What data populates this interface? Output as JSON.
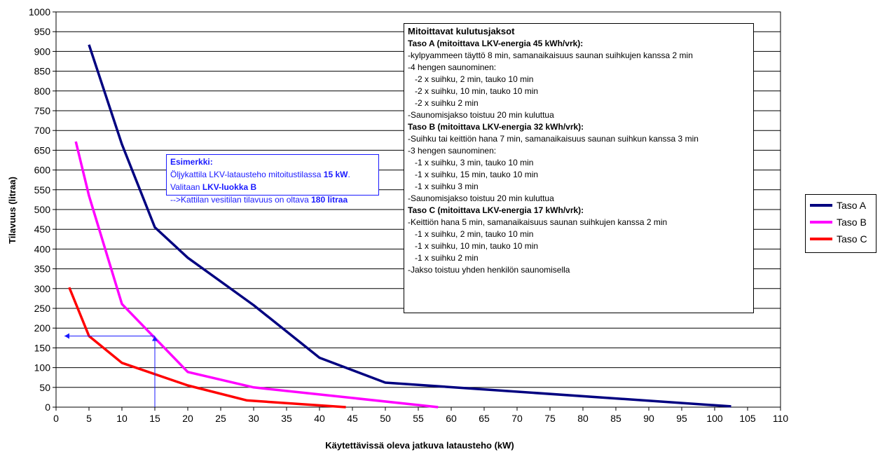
{
  "chart_data": {
    "type": "line",
    "xlabel": "Käytettävissä oleva jatkuva latausteho (kW)",
    "ylabel": "Tilavuus (litraa)",
    "xlim": [
      0,
      110
    ],
    "ylim": [
      0,
      1000
    ],
    "xticks": [
      "0",
      "5",
      "10",
      "15",
      "20",
      "25",
      "30",
      "35",
      "40",
      "45",
      "50",
      "55",
      "60",
      "65",
      "70",
      "75",
      "80",
      "85",
      "90",
      "95",
      "100",
      "105",
      "110"
    ],
    "yticks": [
      "0",
      "50",
      "100",
      "150",
      "200",
      "250",
      "300",
      "350",
      "400",
      "450",
      "500",
      "550",
      "600",
      "650",
      "700",
      "750",
      "800",
      "850",
      "900",
      "950",
      "1000"
    ],
    "grid": "horizontal",
    "legend_position": "right",
    "series": [
      {
        "name": "Taso A",
        "color": "#000080",
        "points": [
          [
            5,
            917
          ],
          [
            10,
            665
          ],
          [
            15,
            455
          ],
          [
            20,
            378
          ],
          [
            30,
            258
          ],
          [
            40,
            125
          ],
          [
            50,
            62
          ],
          [
            102.5,
            2
          ]
        ]
      },
      {
        "name": "Taso B",
        "color": "#ff00ff",
        "points": [
          [
            3,
            672
          ],
          [
            5,
            535
          ],
          [
            10,
            261
          ],
          [
            20,
            89
          ],
          [
            30,
            50
          ],
          [
            58,
            0
          ]
        ]
      },
      {
        "name": "Taso C",
        "color": "#ff0000",
        "points": [
          [
            2,
            303
          ],
          [
            5,
            180
          ],
          [
            10,
            112
          ],
          [
            20,
            55
          ],
          [
            29,
            17
          ],
          [
            44,
            0
          ]
        ]
      }
    ],
    "example_marker": {
      "x": 15,
      "y": 180,
      "color": "#1a1aff"
    }
  },
  "legend": {
    "items": [
      "Taso A",
      "Taso B",
      "Taso C"
    ]
  },
  "example_note": {
    "heading": "Esimerkki:",
    "line1_a": "Öljykattila LKV-latausteho mitoitustilassa ",
    "line1_b": "15 kW",
    "line1_c": ".",
    "line2_a": "Valitaan ",
    "line2_b": "LKV-luokka B",
    "line3_a": "-->Kattilan vesitilan tilavuus on oltava ",
    "line3_b": "180 litraa"
  },
  "info_note": {
    "title": "Mitoittavat kulutusjaksot",
    "lines": [
      {
        "text": "Taso A (mitoittava LKV-energia 45 kWh/vrk):",
        "style": "bold"
      },
      {
        "text": "-kylpyammeen täyttö 8 min, samanaikaisuus saunan suihkujen kanssa 2 min",
        "style": "normal"
      },
      {
        "text": "-4 hengen saunominen:",
        "style": "normal"
      },
      {
        "text": "-2 x suihku, 2 min, tauko 10 min",
        "style": "indent"
      },
      {
        "text": "-2 x suihku, 10 min, tauko 10 min",
        "style": "indent"
      },
      {
        "text": "-2 x suihku 2 min",
        "style": "indent"
      },
      {
        "text": "-Saunomisjakso toistuu 20 min kuluttua",
        "style": "normal"
      },
      {
        "text": "Taso B (mitoittava LKV-energia 32 kWh/vrk):",
        "style": "bold"
      },
      {
        "text": "-Suihku tai keittiön hana 7 min, samanaikaisuus saunan suihkun kanssa 3 min",
        "style": "normal"
      },
      {
        "text": "-3 hengen saunominen:",
        "style": "normal"
      },
      {
        "text": "-1 x suihku, 3 min, tauko 10 min",
        "style": "indent"
      },
      {
        "text": "-1 x suihku, 15 min, tauko 10 min",
        "style": "indent"
      },
      {
        "text": "-1 x suihku 3 min",
        "style": "indent"
      },
      {
        "text": "-Saunomisjakso toistuu 20 min kuluttua",
        "style": "normal"
      },
      {
        "text": "Taso C (mitoittava LKV-energia 17 kWh/vrk):",
        "style": "bold"
      },
      {
        "text": "-Keittiön hana 5 min, samanaikaisuus saunan suihkujen kanssa 2 min",
        "style": "normal"
      },
      {
        "text": "-1 x suihku, 2 min, tauko 10 min",
        "style": "indent"
      },
      {
        "text": "-1 x suihku, 10 min, tauko 10 min",
        "style": "indent"
      },
      {
        "text": "-1 x suihku 2 min",
        "style": "indent"
      },
      {
        "text": "-Jakso toistuu yhden henkilön saunomisella",
        "style": "normal"
      }
    ]
  }
}
